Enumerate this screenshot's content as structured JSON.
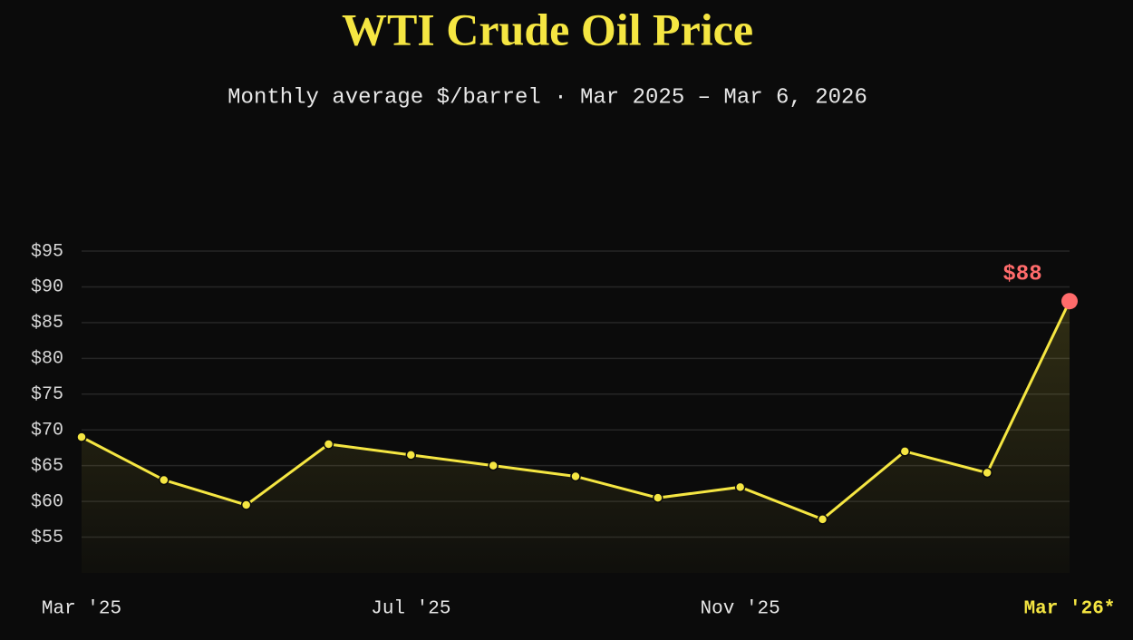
{
  "chart_data": {
    "type": "line",
    "title": "WTI Crude Oil Price",
    "subtitle": "Monthly average $/barrel · Mar 2025 – Mar 6, 2026",
    "categories": [
      "Mar '25",
      null,
      null,
      null,
      "Jul '25",
      null,
      null,
      null,
      "Nov '25",
      null,
      null,
      null,
      "Mar '26*"
    ],
    "series": [
      {
        "name": "WTI",
        "color": "#f5e642",
        "highlight_color": "#ff6b6b",
        "values": [
          69,
          63,
          59.5,
          68,
          66.5,
          65,
          63.5,
          60.5,
          62,
          57.5,
          67,
          64,
          88
        ],
        "value_labels": [
          null,
          null,
          null,
          null,
          null,
          null,
          null,
          null,
          null,
          null,
          null,
          null,
          "$88"
        ]
      }
    ],
    "ylim": [
      50,
      95
    ],
    "yticks": [
      {
        "value": 55,
        "label": "$55"
      },
      {
        "value": 60,
        "label": "$60"
      },
      {
        "value": 65,
        "label": "$65"
      },
      {
        "value": 70,
        "label": "$70"
      },
      {
        "value": 75,
        "label": "$75"
      },
      {
        "value": 80,
        "label": "$80"
      },
      {
        "value": 85,
        "label": "$85"
      },
      {
        "value": 90,
        "label": "$90"
      },
      {
        "value": 95,
        "label": "$95"
      }
    ],
    "grid": true
  }
}
